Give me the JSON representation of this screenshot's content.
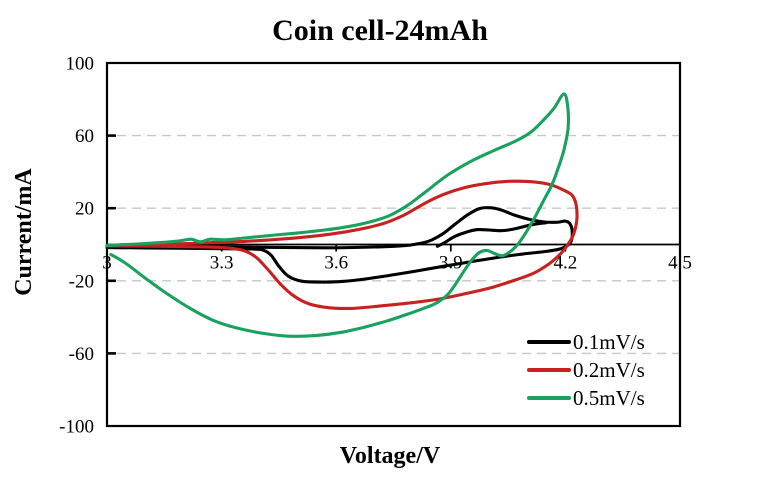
{
  "title": "Coin cell-24mAh",
  "axes": {
    "x_label": "Voltage/V",
    "y_label": "Current/mA",
    "x_ticks": [
      {
        "value": 3,
        "label": "3"
      },
      {
        "value": 3.3,
        "label": "3.3"
      },
      {
        "value": 3.6,
        "label": "3.6"
      },
      {
        "value": 3.9,
        "label": "3.9"
      },
      {
        "value": 4.2,
        "label": "4.2"
      },
      {
        "value": 4.5,
        "label": "4.5"
      }
    ],
    "y_ticks": [
      {
        "value": 100,
        "label": "100"
      },
      {
        "value": 60,
        "label": "60"
      },
      {
        "value": 20,
        "label": "20"
      },
      {
        "value": -20,
        "label": "-20"
      },
      {
        "value": -60,
        "label": "-60"
      },
      {
        "value": -100,
        "label": "-100"
      }
    ]
  },
  "legend": {
    "items": [
      {
        "label": "0.1mV/s",
        "color": "#000000"
      },
      {
        "label": "0.2mV/s",
        "color": "#c92020"
      },
      {
        "label": "0.5mV/s",
        "color": "#1aa160"
      }
    ]
  },
  "colors": {
    "grid": "#c7c7c7",
    "axis": "#000000",
    "background": "#ffffff"
  },
  "chart_data": {
    "type": "line",
    "title": "Coin cell-24mAh",
    "xlabel": "Voltage/V",
    "ylabel": "Current/mA",
    "x_range": [
      3,
      4.5
    ],
    "y_range": [
      -100,
      100
    ],
    "x_tick_step": 0.3,
    "y_tick_step": 40,
    "grid": "dashed horizontal gridlines at -60,-20,20,60; solid axis line at 0",
    "legend_position": "inside lower right",
    "series": [
      {
        "name": "0.1mV/s",
        "color": "#000000",
        "description": "CV loop, scan rate 0.1 mV/s: anodic peak ~20 mA at 3.99 V, vertex 4.21 V, cathodic minimum ~-21 mA at 3.59 V",
        "paths": [
          [
            [
              3.0,
              -0.8
            ],
            [
              3.15,
              -1.0
            ],
            [
              3.3,
              -1.3
            ],
            [
              3.45,
              -1.6
            ],
            [
              3.58,
              -1.8
            ],
            [
              3.7,
              -1.4
            ],
            [
              3.78,
              -0.6
            ],
            [
              3.82,
              0.6
            ],
            [
              3.85,
              2.5
            ],
            [
              3.88,
              6
            ],
            [
              3.91,
              11
            ],
            [
              3.945,
              16.5
            ],
            [
              3.975,
              19.8
            ],
            [
              4.0,
              20.3
            ],
            [
              4.03,
              19.2
            ],
            [
              4.07,
              16
            ],
            [
              4.11,
              13.6
            ],
            [
              4.145,
              12.4
            ],
            [
              4.18,
              12.3
            ],
            [
              4.2,
              12.9
            ],
            [
              4.213,
              11
            ],
            [
              4.218,
              6
            ],
            [
              4.213,
              1
            ],
            [
              4.19,
              -2.2
            ],
            [
              4.15,
              -3.8
            ],
            [
              4.09,
              -5.2
            ],
            [
              4.02,
              -7.2
            ],
            [
              3.95,
              -9.6
            ],
            [
              3.88,
              -12
            ],
            [
              3.81,
              -14.6
            ],
            [
              3.74,
              -17
            ],
            [
              3.68,
              -18.9
            ],
            [
              3.62,
              -20.3
            ],
            [
              3.56,
              -20.7
            ],
            [
              3.51,
              -20.2
            ],
            [
              3.475,
              -17.5
            ],
            [
              3.45,
              -12
            ],
            [
              3.43,
              -6
            ],
            [
              3.41,
              -3.2
            ],
            [
              3.38,
              -2.5
            ],
            [
              3.25,
              -2.2
            ],
            [
              3.1,
              -1.9
            ],
            [
              3.0,
              -1.7
            ]
          ],
          [
            [
              3.865,
              -1
            ],
            [
              3.885,
              1.2
            ],
            [
              3.91,
              4.4
            ],
            [
              3.94,
              6.8
            ],
            [
              3.97,
              8.2
            ],
            [
              4.0,
              8.0
            ],
            [
              4.03,
              7.6
            ],
            [
              4.06,
              8.3
            ],
            [
              4.09,
              9.8
            ],
            [
              4.12,
              11.2
            ],
            [
              4.15,
              12.0
            ]
          ]
        ]
      },
      {
        "name": "0.2mV/s",
        "color": "#c92020",
        "description": "CV loop, scan rate 0.2 mV/s: anodic peak ~35 mA at 4.05 V, vertex 4.22 V, cathodic minimum ~-35 mA at 3.62 V",
        "paths": [
          [
            [
              3.0,
              -0.4
            ],
            [
              3.12,
              0.1
            ],
            [
              3.25,
              0.8
            ],
            [
              3.37,
              1.8
            ],
            [
              3.47,
              3.2
            ],
            [
              3.55,
              4.8
            ],
            [
              3.62,
              6.8
            ],
            [
              3.68,
              9.2
            ],
            [
              3.73,
              12
            ],
            [
              3.78,
              16.5
            ],
            [
              3.83,
              22.5
            ],
            [
              3.88,
              27.5
            ],
            [
              3.93,
              31
            ],
            [
              3.99,
              33.5
            ],
            [
              4.05,
              34.8
            ],
            [
              4.11,
              34.6
            ],
            [
              4.16,
              33
            ],
            [
              4.2,
              29.5
            ],
            [
              4.218,
              27
            ],
            [
              4.228,
              22
            ],
            [
              4.23,
              14
            ],
            [
              4.222,
              6
            ],
            [
              4.208,
              0.5
            ],
            [
              4.188,
              -5
            ],
            [
              4.158,
              -10.5
            ],
            [
              4.12,
              -15.5
            ],
            [
              4.07,
              -19.5
            ],
            [
              4.01,
              -23.5
            ],
            [
              3.94,
              -27
            ],
            [
              3.87,
              -30
            ],
            [
              3.79,
              -32.3
            ],
            [
              3.71,
              -34
            ],
            [
              3.64,
              -35.2
            ],
            [
              3.58,
              -34.8
            ],
            [
              3.53,
              -32.8
            ],
            [
              3.49,
              -28.5
            ],
            [
              3.455,
              -22
            ],
            [
              3.42,
              -13.5
            ],
            [
              3.39,
              -7
            ],
            [
              3.36,
              -3.5
            ],
            [
              3.32,
              -2
            ],
            [
              3.26,
              -1.4
            ],
            [
              3.15,
              -1.0
            ],
            [
              3.0,
              -0.8
            ]
          ]
        ]
      },
      {
        "name": "0.5mV/s",
        "color": "#1aa160",
        "description": "CV loop, scan rate 0.5 mV/s: anodic peak ~83 mA at 4.2 V, small reduction wiggle near 4.0 V on reverse sweep, cathodic minimum ~-50 mA at 3.5 V",
        "paths": [
          [
            [
              3.0,
              -0.5
            ],
            [
              3.08,
              0.3
            ],
            [
              3.15,
              1.2
            ],
            [
              3.19,
              2.0
            ],
            [
              3.22,
              2.9
            ],
            [
              3.245,
              1.5
            ],
            [
              3.27,
              2.9
            ],
            [
              3.31,
              2.6
            ],
            [
              3.36,
              3.6
            ],
            [
              3.43,
              5
            ],
            [
              3.5,
              6.4
            ],
            [
              3.57,
              8
            ],
            [
              3.63,
              9.8
            ],
            [
              3.69,
              12.5
            ],
            [
              3.74,
              16
            ],
            [
              3.79,
              22
            ],
            [
              3.84,
              30
            ],
            [
              3.89,
              38
            ],
            [
              3.95,
              45.5
            ],
            [
              4.01,
              51.5
            ],
            [
              4.07,
              57
            ],
            [
              4.11,
              62
            ],
            [
              4.14,
              68
            ],
            [
              4.17,
              75
            ],
            [
              4.196,
              83
            ],
            [
              4.206,
              76
            ],
            [
              4.207,
              64
            ],
            [
              4.196,
              52
            ],
            [
              4.181,
              42
            ],
            [
              4.165,
              33
            ],
            [
              4.15,
              27
            ],
            [
              4.135,
              21
            ],
            [
              4.115,
              13
            ],
            [
              4.095,
              6
            ],
            [
              4.075,
              0
            ],
            [
              4.055,
              -4
            ],
            [
              4.035,
              -6.2
            ],
            [
              4.015,
              -5
            ],
            [
              3.995,
              -3.3
            ],
            [
              3.975,
              -4.4
            ],
            [
              3.955,
              -8.5
            ],
            [
              3.935,
              -14.5
            ],
            [
              3.912,
              -22
            ],
            [
              3.89,
              -28
            ],
            [
              3.86,
              -32.5
            ],
            [
              3.825,
              -35.5
            ],
            [
              3.785,
              -38.5
            ],
            [
              3.735,
              -42
            ],
            [
              3.675,
              -45.5
            ],
            [
              3.615,
              -48.3
            ],
            [
              3.545,
              -50.2
            ],
            [
              3.475,
              -50.5
            ],
            [
              3.41,
              -49
            ],
            [
              3.34,
              -46
            ],
            [
              3.28,
              -42
            ],
            [
              3.22,
              -35.5
            ],
            [
              3.16,
              -27.5
            ],
            [
              3.1,
              -18.5
            ],
            [
              3.05,
              -10.5
            ],
            [
              3.01,
              -5.5
            ]
          ]
        ]
      }
    ]
  }
}
